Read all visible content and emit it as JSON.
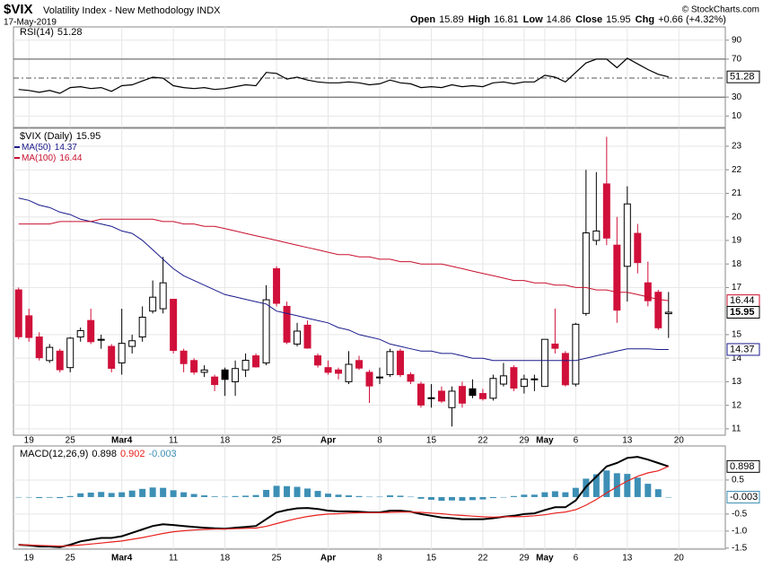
{
  "header": {
    "symbol": "$VIX",
    "name": "Volatility Index - New Methodology INDX",
    "date": "17-May-2019",
    "labels": {
      "open": "Open",
      "high": "High",
      "low": "Low",
      "close": "Close",
      "chg": "Chg"
    },
    "change": "+0.66 (+4.32%)",
    "copyright": "© StockCharts.com"
  },
  "chart_data": [
    {
      "type": "line",
      "title": "RSI(14)",
      "series": [
        {
          "name": "RSI(14)",
          "color": "#000000",
          "values": [
            38,
            37,
            35,
            37,
            34,
            40,
            41,
            39,
            40,
            36,
            42,
            43,
            47,
            51,
            50,
            42,
            40,
            39,
            40,
            38,
            39,
            41,
            43,
            42,
            56,
            55,
            49,
            51,
            48,
            46,
            45,
            45,
            46,
            45,
            43,
            44,
            48,
            45,
            44,
            40,
            41,
            40,
            43,
            41,
            42,
            41,
            45,
            46,
            44,
            46,
            46,
            53,
            51,
            46,
            56,
            66,
            70,
            70,
            61,
            71,
            65,
            59,
            54,
            51.28
          ]
        }
      ],
      "ylim": [
        -2,
        104
      ],
      "yticks": [
        10,
        30,
        70,
        90
      ],
      "levels": [
        {
          "value": 70,
          "style": "solid"
        },
        {
          "value": 50,
          "style": "dashed"
        },
        {
          "value": 30,
          "style": "solid"
        }
      ]
    },
    {
      "type": "candlestick",
      "title": "$VIX (Daily)",
      "colors": {
        "up": "#000000",
        "down": "#d0103a"
      },
      "candles": {
        "open": [
          16.9,
          15.8,
          14.9,
          13.9,
          14.3,
          13.6,
          14.9,
          15.6,
          14.8,
          14.5,
          13.8,
          14.5,
          14.9,
          16.0,
          16.1,
          16.5,
          14.3,
          13.9,
          13.4,
          13.2,
          13.5,
          13.0,
          13.5,
          14.1,
          13.8,
          17.8,
          16.2,
          14.6,
          15.4,
          14.1,
          13.6,
          13.5,
          13.0,
          13.9,
          13.4,
          13.2,
          13.3,
          14.3,
          13.3,
          12.9,
          12.3,
          12.6,
          11.9,
          12.8,
          12.7,
          12.5,
          12.3,
          12.9,
          13.6,
          12.8,
          13.1,
          12.8,
          14.6,
          14.2,
          12.9,
          15.9,
          19.0,
          21.4,
          18.8,
          17.9,
          19.3,
          17.2,
          16.8,
          15.89
        ],
        "high": [
          17.0,
          16.1,
          15.1,
          14.6,
          14.4,
          14.9,
          15.3,
          16.1,
          15.0,
          14.6,
          16.1,
          15.0,
          16.2,
          17.3,
          18.3,
          16.5,
          14.4,
          14.0,
          13.7,
          13.3,
          13.6,
          13.9,
          14.2,
          14.2,
          17.1,
          17.9,
          16.4,
          15.5,
          15.6,
          14.2,
          13.9,
          13.6,
          14.3,
          14.1,
          13.5,
          13.6,
          14.4,
          14.4,
          13.4,
          13.0,
          12.9,
          12.8,
          12.8,
          13.0,
          13.1,
          12.7,
          13.3,
          13.8,
          13.7,
          13.3,
          13.3,
          14.8,
          16.1,
          14.3,
          15.5,
          22.0,
          21.9,
          23.4,
          20.0,
          21.3,
          19.7,
          18.1,
          16.9,
          16.81
        ],
        "low": [
          14.8,
          14.7,
          13.9,
          13.8,
          13.4,
          13.4,
          14.7,
          14.6,
          14.4,
          13.4,
          13.3,
          14.2,
          14.7,
          15.9,
          15.9,
          14.2,
          13.4,
          13.3,
          13.2,
          12.6,
          12.4,
          12.4,
          13.2,
          13.6,
          13.7,
          16.2,
          14.6,
          14.5,
          14.4,
          13.6,
          13.3,
          13.1,
          12.9,
          13.5,
          12.1,
          12.9,
          13.2,
          13.2,
          12.9,
          11.9,
          11.9,
          12.1,
          11.1,
          11.9,
          12.3,
          12.2,
          12.2,
          12.8,
          12.6,
          12.5,
          12.6,
          12.8,
          14.2,
          12.8,
          12.8,
          15.8,
          18.8,
          18.8,
          15.5,
          16.4,
          17.6,
          16.2,
          15.2,
          14.86
        ],
        "close": [
          14.91,
          14.88,
          14.02,
          14.46,
          13.51,
          14.85,
          15.17,
          14.7,
          14.78,
          13.57,
          14.63,
          14.74,
          15.74,
          16.59,
          17.2,
          14.33,
          13.77,
          13.41,
          13.5,
          12.88,
          13.1,
          13.56,
          13.91,
          13.63,
          16.48,
          16.33,
          14.68,
          15.15,
          14.43,
          13.71,
          13.4,
          13.36,
          13.74,
          13.58,
          12.82,
          13.18,
          14.28,
          13.3,
          13.02,
          12.01,
          12.32,
          12.18,
          12.6,
          12.09,
          12.42,
          12.28,
          13.14,
          13.25,
          12.73,
          13.11,
          13.12,
          14.8,
          14.42,
          12.87,
          15.44,
          19.32,
          19.4,
          19.1,
          16.04,
          20.55,
          18.06,
          16.44,
          15.29,
          15.95
        ]
      },
      "series": [
        {
          "name": "MA(50)",
          "color": "#1a1a8c",
          "values": [
            20.8,
            20.7,
            20.5,
            20.4,
            20.2,
            20.1,
            19.9,
            19.8,
            19.7,
            19.6,
            19.4,
            19.3,
            19.0,
            18.6,
            18.2,
            17.8,
            17.5,
            17.3,
            17.1,
            16.9,
            16.7,
            16.6,
            16.5,
            16.4,
            16.3,
            16.0,
            15.9,
            15.8,
            15.7,
            15.6,
            15.5,
            15.3,
            15.2,
            15.0,
            14.9,
            14.8,
            14.6,
            14.5,
            14.4,
            14.3,
            14.3,
            14.2,
            14.2,
            14.1,
            14.0,
            14.0,
            13.9,
            13.9,
            13.9,
            13.9,
            13.9,
            13.9,
            13.9,
            13.9,
            13.9,
            14.0,
            14.1,
            14.2,
            14.3,
            14.4,
            14.4,
            14.4,
            14.37,
            14.37
          ]
        },
        {
          "name": "MA(100)",
          "color": "#c8102e",
          "values": [
            19.7,
            19.7,
            19.7,
            19.7,
            19.8,
            19.8,
            19.8,
            19.8,
            19.9,
            19.9,
            19.9,
            19.9,
            19.9,
            19.9,
            19.8,
            19.8,
            19.7,
            19.7,
            19.6,
            19.6,
            19.5,
            19.4,
            19.3,
            19.2,
            19.1,
            19.0,
            18.9,
            18.8,
            18.7,
            18.6,
            18.5,
            18.4,
            18.4,
            18.3,
            18.3,
            18.2,
            18.2,
            18.1,
            18.1,
            18.0,
            18.0,
            18.0,
            17.9,
            17.8,
            17.7,
            17.6,
            17.5,
            17.4,
            17.3,
            17.3,
            17.2,
            17.2,
            17.1,
            17.1,
            17.0,
            17.0,
            16.9,
            16.9,
            16.8,
            16.8,
            16.7,
            16.6,
            16.5,
            16.44
          ]
        }
      ],
      "ylim": [
        10.73,
        23.76
      ],
      "yticks": [
        11,
        12,
        13,
        14,
        15,
        17,
        18,
        19,
        20,
        21,
        22,
        23
      ],
      "xlim": [
        -0.5,
        68.5
      ],
      "xticks": [
        {
          "value": 1,
          "label": "19"
        },
        {
          "value": 5,
          "label": "25"
        },
        {
          "value": 10,
          "label": "Mar4"
        },
        {
          "value": 15,
          "label": "11"
        },
        {
          "value": 20,
          "label": "18"
        },
        {
          "value": 25,
          "label": "25"
        },
        {
          "value": 30,
          "label": "Apr"
        },
        {
          "value": 35,
          "label": "8"
        },
        {
          "value": 40,
          "label": "15"
        },
        {
          "value": 45,
          "label": "22"
        },
        {
          "value": 49,
          "label": "29"
        },
        {
          "value": 51,
          "label": "May"
        },
        {
          "value": 54,
          "label": "6"
        },
        {
          "value": 59,
          "label": "13"
        },
        {
          "value": 64,
          "label": "20"
        }
      ],
      "grid": true
    },
    {
      "type": "macd",
      "title": "MACD(12,26,9)",
      "series": [
        {
          "name": "MACD(12,26,9)",
          "color": "#000000",
          "style": "line",
          "values": [
            -1.4,
            -1.42,
            -1.45,
            -1.45,
            -1.47,
            -1.4,
            -1.3,
            -1.25,
            -1.2,
            -1.2,
            -1.15,
            -1.05,
            -0.95,
            -0.85,
            -0.8,
            -0.82,
            -0.85,
            -0.88,
            -0.9,
            -0.92,
            -0.93,
            -0.9,
            -0.88,
            -0.85,
            -0.65,
            -0.45,
            -0.38,
            -0.33,
            -0.32,
            -0.35,
            -0.4,
            -0.42,
            -0.42,
            -0.43,
            -0.45,
            -0.45,
            -0.4,
            -0.4,
            -0.43,
            -0.5,
            -0.55,
            -0.6,
            -0.62,
            -0.65,
            -0.65,
            -0.65,
            -0.62,
            -0.58,
            -0.55,
            -0.5,
            -0.48,
            -0.38,
            -0.3,
            -0.3,
            -0.1,
            0.3,
            0.6,
            0.9,
            1.0,
            1.15,
            1.18,
            1.1,
            1.0,
            0.898
          ]
        },
        {
          "color": "#e8201c",
          "style": "line",
          "values": [
            -1.4,
            -1.41,
            -1.42,
            -1.43,
            -1.44,
            -1.43,
            -1.41,
            -1.38,
            -1.35,
            -1.32,
            -1.29,
            -1.24,
            -1.19,
            -1.13,
            -1.07,
            -1.02,
            -0.99,
            -0.97,
            -0.95,
            -0.94,
            -0.94,
            -0.93,
            -0.92,
            -0.91,
            -0.86,
            -0.78,
            -0.7,
            -0.63,
            -0.57,
            -0.53,
            -0.5,
            -0.49,
            -0.47,
            -0.46,
            -0.46,
            -0.46,
            -0.45,
            -0.44,
            -0.44,
            -0.45,
            -0.47,
            -0.49,
            -0.52,
            -0.54,
            -0.56,
            -0.58,
            -0.59,
            -0.58,
            -0.58,
            -0.57,
            -0.55,
            -0.52,
            -0.47,
            -0.44,
            -0.37,
            -0.24,
            -0.07,
            0.12,
            0.3,
            0.47,
            0.61,
            0.71,
            0.77,
            0.902
          ]
        },
        {
          "color": "#3d8fb5",
          "style": "histogram",
          "values": [
            0,
            -0.01,
            -0.03,
            -0.02,
            -0.03,
            0.03,
            0.11,
            0.13,
            0.15,
            0.12,
            0.14,
            0.19,
            0.24,
            0.28,
            0.27,
            0.2,
            0.14,
            0.09,
            0.05,
            0.02,
            0.01,
            0.03,
            0.04,
            0.06,
            0.21,
            0.33,
            0.32,
            0.3,
            0.25,
            0.18,
            0.1,
            0.07,
            0.05,
            0.03,
            0.01,
            0.01,
            0.05,
            0.04,
            0.01,
            -0.05,
            -0.08,
            -0.11,
            -0.1,
            -0.11,
            -0.09,
            -0.07,
            -0.03,
            0.0,
            0.03,
            0.07,
            0.07,
            0.14,
            0.17,
            0.14,
            0.27,
            0.54,
            0.67,
            0.78,
            0.7,
            0.68,
            0.57,
            0.39,
            0.23,
            -0.003
          ]
        }
      ],
      "ylim": [
        -1.53,
        1.5
      ],
      "yticks": [
        0.5,
        -0.5,
        {
          "value": -1,
          "label": "-1.0"
        },
        -1.5
      ]
    }
  ]
}
